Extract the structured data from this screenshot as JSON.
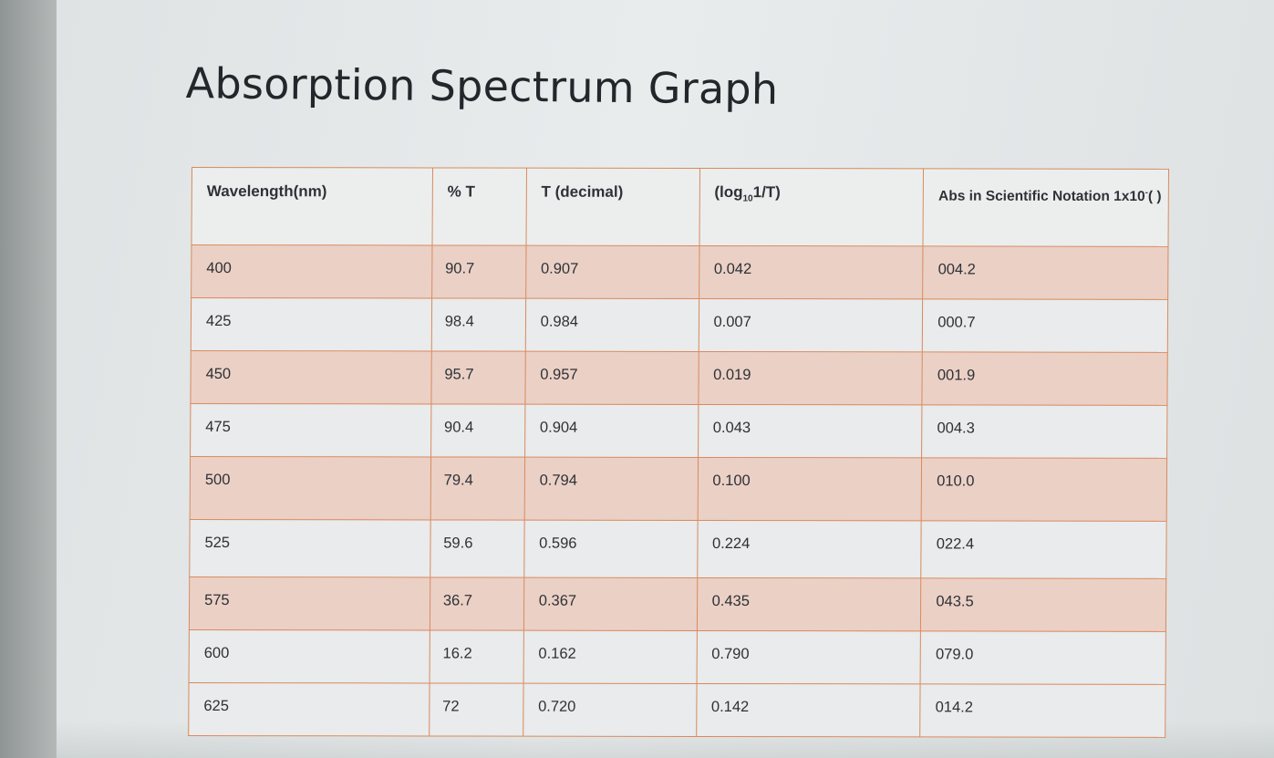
{
  "title": "Absorption Spectrum Graph",
  "table": {
    "headers": [
      "Wavelength(nm)",
      "% T",
      "T (decimal)",
      "(log",
      "10",
      "1/T)",
      "Abs in Scientific Notation 1x10",
      "-",
      "( )"
    ],
    "rows": [
      [
        "400",
        "90.7",
        "0.907",
        "0.042",
        "004.2"
      ],
      [
        "425",
        "98.4",
        "0.984",
        "0.007",
        "000.7"
      ],
      [
        "450",
        "95.7",
        "0.957",
        "0.019",
        "001.9"
      ],
      [
        "475",
        "90.4",
        "0.904",
        "0.043",
        "004.3"
      ],
      [
        "500",
        "79.4",
        "0.794",
        "0.100",
        "010.0"
      ],
      [
        "525",
        "59.6",
        "0.596",
        "0.224",
        "022.4"
      ],
      [
        "575",
        "36.7",
        "0.367",
        "0.435",
        "043.5"
      ],
      [
        "600",
        "16.2",
        "0.162",
        "0.790",
        "079.0"
      ],
      [
        "625",
        "72",
        "0.720",
        "0.142",
        "014.2"
      ]
    ]
  },
  "colors": {
    "border": "#d98a5c",
    "shaded_row": "#ebd0c6",
    "plain_row": "#e9ebec"
  }
}
